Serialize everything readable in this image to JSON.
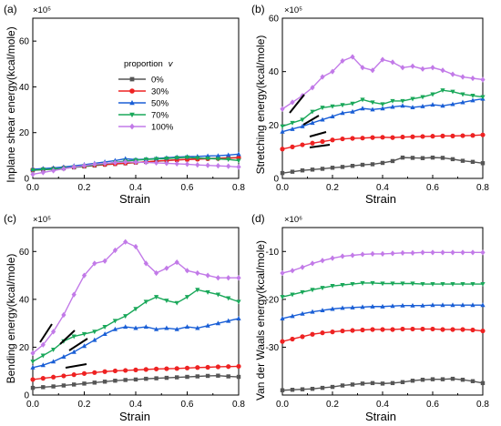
{
  "legend": {
    "title": "proportion",
    "title_var": "v",
    "entries": [
      "0%",
      "30%",
      "50%",
      "70%",
      "100%"
    ]
  },
  "series_styles": [
    {
      "color": "#555555",
      "marker": "square"
    },
    {
      "color": "#ee2222",
      "marker": "circle"
    },
    {
      "color": "#1a5fd6",
      "marker": "triangle-up"
    },
    {
      "color": "#1aa85a",
      "marker": "triangle-down"
    },
    {
      "color": "#c27ae8",
      "marker": "diamond"
    }
  ],
  "chart_data": [
    {
      "panel": "(a)",
      "type": "line",
      "multiplier": "×10⁵",
      "xlabel": "Strain",
      "ylabel": "Inplane shear energy(kcal/mole)",
      "xlim": [
        0,
        0.8
      ],
      "ylim": [
        0,
        70
      ],
      "xticks": [
        "0.0",
        "0.2",
        "0.4",
        "0.6",
        "0.8"
      ],
      "yticks": [
        "0",
        "20",
        "40",
        "60"
      ],
      "x": [
        0.0,
        0.04,
        0.08,
        0.12,
        0.16,
        0.2,
        0.24,
        0.28,
        0.32,
        0.36,
        0.4,
        0.44,
        0.48,
        0.52,
        0.56,
        0.6,
        0.64,
        0.68,
        0.72,
        0.76,
        0.8
      ],
      "series": [
        {
          "values": [
            3.5,
            3.8,
            4.0,
            4.4,
            4.8,
            5.2,
            5.6,
            6.0,
            6.3,
            6.6,
            6.9,
            7.2,
            7.5,
            7.8,
            8.1,
            8.3,
            8.5,
            8.7,
            8.8,
            9.0,
            9.1
          ]
        },
        {
          "values": [
            3.8,
            4.0,
            4.3,
            4.7,
            5.0,
            5.4,
            5.8,
            6.1,
            6.4,
            6.7,
            7.0,
            7.3,
            7.6,
            7.9,
            8.1,
            8.3,
            8.4,
            8.6,
            8.7,
            8.9,
            9.0
          ]
        },
        {
          "values": [
            4.0,
            4.3,
            4.6,
            5.0,
            5.5,
            6.0,
            6.6,
            7.2,
            7.8,
            8.6,
            8.2,
            8.4,
            8.7,
            9.0,
            9.3,
            9.5,
            9.6,
            9.8,
            9.9,
            10.2,
            10.6
          ]
        },
        {
          "values": [
            3.6,
            3.9,
            4.1,
            4.5,
            4.9,
            5.4,
            5.9,
            6.4,
            7.0,
            7.6,
            8.0,
            8.3,
            8.5,
            8.7,
            9.0,
            9.2,
            8.9,
            8.7,
            8.5,
            8.3,
            7.8
          ]
        },
        {
          "values": [
            1.8,
            2.6,
            3.4,
            4.2,
            5.0,
            5.6,
            6.2,
            6.6,
            6.9,
            7.2,
            7.1,
            7.0,
            6.8,
            6.6,
            6.4,
            6.2,
            5.9,
            5.7,
            5.5,
            5.3,
            5.0
          ]
        }
      ]
    },
    {
      "panel": "(b)",
      "type": "line",
      "multiplier": "×10⁵",
      "xlabel": "Strain",
      "ylabel": "Stretching energy(kcal/mole)",
      "xlim": [
        0,
        0.8
      ],
      "ylim": [
        0,
        60
      ],
      "xticks": [
        "0.0",
        "0.2",
        "0.4",
        "0.6",
        "0.8"
      ],
      "yticks": [
        "0",
        "20",
        "40",
        "60"
      ],
      "x": [
        0.0,
        0.04,
        0.08,
        0.12,
        0.16,
        0.2,
        0.24,
        0.28,
        0.32,
        0.36,
        0.4,
        0.44,
        0.48,
        0.52,
        0.56,
        0.6,
        0.64,
        0.68,
        0.72,
        0.76,
        0.8
      ],
      "series": [
        {
          "values": [
            2.0,
            2.5,
            3.0,
            3.3,
            3.6,
            4.0,
            4.3,
            4.7,
            5.1,
            5.3,
            5.8,
            6.5,
            7.8,
            7.7,
            7.6,
            7.8,
            7.7,
            7.2,
            6.6,
            6.2,
            5.7
          ]
        },
        {
          "values": [
            11.0,
            11.8,
            12.6,
            13.2,
            13.8,
            14.4,
            14.8,
            15.0,
            15.1,
            15.3,
            15.4,
            15.3,
            15.5,
            15.6,
            15.7,
            15.8,
            15.9,
            15.9,
            16.0,
            16.1,
            16.3
          ]
        },
        {
          "values": [
            17.5,
            18.5,
            19.5,
            20.8,
            22.0,
            23.2,
            24.5,
            25.0,
            26.2,
            25.8,
            26.2,
            26.8,
            27.2,
            26.6,
            27.0,
            27.6,
            27.2,
            27.8,
            28.5,
            29.2,
            29.8
          ]
        },
        {
          "values": [
            19.5,
            20.8,
            22.0,
            25.0,
            26.5,
            27.0,
            27.5,
            28.0,
            29.5,
            28.5,
            27.8,
            29.0,
            29.0,
            29.8,
            30.5,
            31.5,
            33.0,
            32.5,
            31.5,
            31.0,
            30.5
          ]
        },
        {
          "values": [
            26.0,
            28.5,
            31.0,
            34.0,
            38.0,
            40.0,
            44.0,
            45.5,
            41.5,
            40.5,
            44.5,
            43.5,
            41.5,
            42.0,
            41.0,
            41.5,
            40.5,
            39.0,
            38.0,
            37.5,
            37.0
          ]
        }
      ]
    },
    {
      "panel": "(c)",
      "type": "line",
      "multiplier": "×10⁵",
      "xlabel": "Strain",
      "ylabel": "Bending energy(kcal/mole)",
      "xlim": [
        0,
        0.8
      ],
      "ylim": [
        0,
        70
      ],
      "xticks": [
        "0.0",
        "0.2",
        "0.4",
        "0.6",
        "0.8"
      ],
      "yticks": [
        "0",
        "20",
        "40",
        "60"
      ],
      "x": [
        0.0,
        0.04,
        0.08,
        0.12,
        0.16,
        0.2,
        0.24,
        0.28,
        0.32,
        0.36,
        0.4,
        0.44,
        0.48,
        0.52,
        0.56,
        0.6,
        0.64,
        0.68,
        0.72,
        0.76,
        0.8
      ],
      "series": [
        {
          "values": [
            3.0,
            3.3,
            3.6,
            4.0,
            4.4,
            4.8,
            5.2,
            5.6,
            6.0,
            6.3,
            6.5,
            6.8,
            7.0,
            7.2,
            7.4,
            7.6,
            7.8,
            8.0,
            8.1,
            7.8,
            7.6
          ]
        },
        {
          "values": [
            6.5,
            7.0,
            7.5,
            8.0,
            8.5,
            9.0,
            9.4,
            9.8,
            10.1,
            10.3,
            10.5,
            10.7,
            10.9,
            11.0,
            11.1,
            11.3,
            11.5,
            11.6,
            11.8,
            11.9,
            12.0
          ]
        },
        {
          "values": [
            11.5,
            12.5,
            14.0,
            16.0,
            18.0,
            20.5,
            23.0,
            25.5,
            27.5,
            28.5,
            28.0,
            28.5,
            27.5,
            28.0,
            27.5,
            28.5,
            28.0,
            29.0,
            30.0,
            31.0,
            32.0
          ]
        },
        {
          "values": [
            14.0,
            16.5,
            19.0,
            22.5,
            24.5,
            25.5,
            26.5,
            28.5,
            31.0,
            33.0,
            36.0,
            39.0,
            41.0,
            39.5,
            38.5,
            41.0,
            44.0,
            43.0,
            42.0,
            40.5,
            39.0
          ]
        },
        {
          "values": [
            17.5,
            21.0,
            26.5,
            33.5,
            42.0,
            50.0,
            55.0,
            56.0,
            60.5,
            64.0,
            62.0,
            55.0,
            51.0,
            53.0,
            55.5,
            52.0,
            51.0,
            50.0,
            49.0,
            49.0,
            49.0
          ]
        }
      ]
    },
    {
      "panel": "(d)",
      "type": "line",
      "multiplier": "×10⁶",
      "xlabel": "Strain",
      "ylabel": "Van der Waals energy(kcal/mole)",
      "xlim": [
        0,
        0.8
      ],
      "ylim": [
        -40,
        -5
      ],
      "xticks": [
        "0.0",
        "0.2",
        "0.4",
        "0.6",
        "0.8"
      ],
      "yticks": [
        "-30",
        "-20",
        "-10"
      ],
      "x": [
        0.0,
        0.04,
        0.08,
        0.12,
        0.16,
        0.2,
        0.24,
        0.28,
        0.32,
        0.36,
        0.4,
        0.44,
        0.48,
        0.52,
        0.56,
        0.6,
        0.64,
        0.68,
        0.72,
        0.76,
        0.8
      ],
      "series": [
        {
          "values": [
            -39.0,
            -38.9,
            -38.8,
            -38.7,
            -38.5,
            -38.3,
            -38.0,
            -37.8,
            -37.6,
            -37.5,
            -37.6,
            -37.5,
            -37.3,
            -37.0,
            -36.8,
            -36.7,
            -36.7,
            -36.6,
            -36.8,
            -37.1,
            -37.5
          ]
        },
        {
          "values": [
            -28.8,
            -28.3,
            -27.8,
            -27.3,
            -27.0,
            -26.8,
            -26.6,
            -26.5,
            -26.4,
            -26.3,
            -26.3,
            -26.3,
            -26.2,
            -26.2,
            -26.2,
            -26.2,
            -26.3,
            -26.3,
            -26.3,
            -26.4,
            -26.6
          ]
        },
        {
          "values": [
            -24.0,
            -23.5,
            -23.0,
            -22.6,
            -22.3,
            -22.0,
            -21.8,
            -21.7,
            -21.6,
            -21.5,
            -21.5,
            -21.4,
            -21.3,
            -21.3,
            -21.3,
            -21.2,
            -21.2,
            -21.2,
            -21.2,
            -21.2,
            -21.2
          ]
        },
        {
          "values": [
            -19.5,
            -19.0,
            -18.5,
            -18.0,
            -17.6,
            -17.2,
            -17.0,
            -16.8,
            -16.6,
            -16.6,
            -16.7,
            -16.7,
            -16.7,
            -16.7,
            -16.8,
            -16.8,
            -16.8,
            -16.8,
            -16.8,
            -16.8,
            -16.8
          ]
        },
        {
          "values": [
            -14.5,
            -14.0,
            -13.3,
            -12.5,
            -11.9,
            -11.4,
            -11.0,
            -10.8,
            -10.6,
            -10.5,
            -10.5,
            -10.4,
            -10.3,
            -10.3,
            -10.2,
            -10.2,
            -10.2,
            -10.2,
            -10.2,
            -10.2,
            -10.2
          ]
        }
      ]
    }
  ]
}
